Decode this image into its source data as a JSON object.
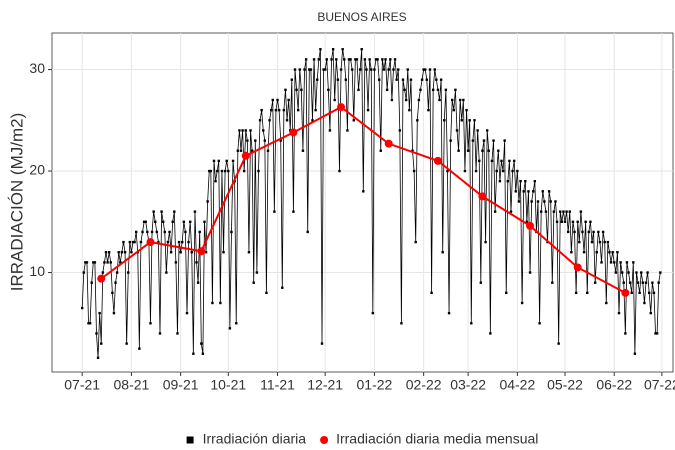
{
  "chart_data": {
    "type": "line",
    "title": "BUENOS AIRES",
    "y_label": "IRRADIACIÓN (MJ/m2)",
    "xlim": [
      -19,
      372
    ],
    "xticks": [
      {
        "value": 0,
        "label": "07-21"
      },
      {
        "value": 31,
        "label": "08-21"
      },
      {
        "value": 62,
        "label": "09-21"
      },
      {
        "value": 92,
        "label": "10-21"
      },
      {
        "value": 123,
        "label": "11-21"
      },
      {
        "value": 153,
        "label": "12-21"
      },
      {
        "value": 184,
        "label": "01-22"
      },
      {
        "value": 215,
        "label": "02-22"
      },
      {
        "value": 243,
        "label": "03-22"
      },
      {
        "value": 274,
        "label": "04-22"
      },
      {
        "value": 304,
        "label": "05-22"
      },
      {
        "value": 335,
        "label": "06-22"
      },
      {
        "value": 365,
        "label": "07-22"
      }
    ],
    "ylim": [
      0.2,
      33.6
    ],
    "yticks": [
      10,
      20,
      30
    ],
    "grid": true,
    "legend": "bottom",
    "series": [
      {
        "name": "Irradiación diaria",
        "color": "#000000",
        "marker": "square",
        "x": [
          0,
          1,
          2,
          3,
          4,
          5,
          6,
          7,
          8,
          9,
          10,
          11,
          12,
          13,
          14,
          15,
          16,
          17,
          18,
          19,
          20,
          21,
          22,
          23,
          24,
          25,
          26,
          27,
          28,
          29,
          30,
          31,
          32,
          33,
          34,
          35,
          36,
          37,
          38,
          39,
          40,
          41,
          42,
          43,
          44,
          45,
          46,
          47,
          48,
          49,
          50,
          51,
          52,
          53,
          54,
          55,
          56,
          57,
          58,
          59,
          60,
          61,
          62,
          63,
          64,
          65,
          66,
          67,
          68,
          69,
          70,
          71,
          72,
          73,
          74,
          75,
          76,
          77,
          78,
          79,
          80,
          81,
          82,
          83,
          84,
          85,
          86,
          87,
          88,
          89,
          90,
          91,
          92,
          93,
          94,
          95,
          96,
          97,
          98,
          99,
          100,
          101,
          102,
          103,
          104,
          105,
          106,
          107,
          108,
          109,
          110,
          111,
          112,
          113,
          114,
          115,
          116,
          117,
          118,
          119,
          120,
          121,
          122,
          123,
          124,
          125,
          126,
          127,
          128,
          129,
          130,
          131,
          132,
          133,
          134,
          135,
          136,
          137,
          138,
          139,
          140,
          141,
          142,
          143,
          144,
          145,
          146,
          147,
          148,
          149,
          150,
          151,
          152,
          153,
          154,
          155,
          156,
          157,
          158,
          159,
          160,
          161,
          162,
          163,
          164,
          165,
          166,
          167,
          168,
          169,
          170,
          171,
          172,
          173,
          174,
          175,
          176,
          177,
          178,
          179,
          180,
          181,
          182,
          183,
          184,
          185,
          186,
          187,
          188,
          189,
          190,
          191,
          192,
          193,
          194,
          195,
          196,
          197,
          198,
          199,
          200,
          201,
          202,
          203,
          204,
          205,
          206,
          207,
          208,
          209,
          210,
          211,
          212,
          213,
          214,
          215,
          216,
          217,
          218,
          219,
          220,
          221,
          222,
          223,
          224,
          225,
          226,
          227,
          228,
          229,
          230,
          231,
          232,
          233,
          234,
          235,
          236,
          237,
          238,
          239,
          240,
          241,
          242,
          243,
          244,
          245,
          246,
          247,
          248,
          249,
          250,
          251,
          252,
          253,
          254,
          255,
          256,
          257,
          258,
          259,
          260,
          261,
          262,
          263,
          264,
          265,
          266,
          267,
          268,
          269,
          270,
          271,
          272,
          273,
          274,
          275,
          276,
          277,
          278,
          279,
          280,
          281,
          282,
          283,
          284,
          285,
          286,
          287,
          288,
          289,
          290,
          291,
          292,
          293,
          294,
          295,
          296,
          297,
          298,
          299,
          300,
          301,
          302,
          303,
          304,
          305,
          306,
          307,
          308,
          309,
          310,
          311,
          312,
          313,
          314,
          315,
          316,
          317,
          318,
          319,
          320,
          321,
          322,
          323,
          324,
          325,
          326,
          327,
          328,
          329,
          330,
          331,
          332,
          333,
          334,
          335,
          336,
          337,
          338,
          339,
          340,
          341,
          342,
          343,
          344,
          345,
          346,
          347,
          348,
          349,
          350,
          351,
          352,
          353,
          354,
          355,
          356,
          357,
          358,
          359,
          360,
          361,
          362,
          363,
          364
        ],
        "values": [
          6.5,
          10,
          11,
          11,
          5,
          5,
          9,
          11,
          11,
          4,
          1.6,
          6,
          3,
          10,
          11,
          12,
          11,
          12,
          11,
          8,
          6,
          9,
          10,
          12,
          11,
          12,
          13,
          12,
          3,
          10,
          13,
          12,
          13,
          13,
          14,
          12,
          2.5,
          13,
          14,
          15,
          15,
          14,
          13,
          5,
          14,
          16,
          15,
          14,
          13,
          4,
          16,
          15,
          14,
          10,
          13,
          14,
          12,
          15,
          16,
          11,
          4,
          13,
          12,
          13,
          15,
          14,
          6,
          13,
          15,
          12,
          2,
          16,
          11,
          9,
          14,
          3,
          2,
          15,
          12,
          17,
          20,
          20,
          7,
          21,
          19,
          20,
          21,
          7,
          20,
          12,
          20,
          21,
          20,
          4.5,
          14,
          21,
          19,
          5,
          22,
          24,
          22,
          24,
          20,
          24,
          23,
          12,
          24,
          22,
          9,
          23,
          10,
          20,
          25,
          26,
          24,
          23,
          8,
          22,
          25,
          26,
          27,
          16,
          26,
          27,
          26,
          23,
          8.5,
          26,
          28,
          25,
          27,
          24,
          29,
          16,
          30,
          28,
          26,
          30,
          28,
          22,
          30,
          31,
          14,
          30,
          30,
          25,
          31,
          26,
          29,
          31,
          32,
          3,
          30,
          30,
          31,
          28,
          24,
          31,
          32,
          27,
          31,
          29,
          20,
          30,
          32,
          31,
          29,
          24,
          31,
          31,
          30,
          25,
          31,
          31,
          28,
          30,
          32,
          18,
          31,
          30,
          26,
          31,
          30,
          6,
          30,
          31,
          31,
          29,
          22,
          31,
          30,
          31,
          28,
          30,
          31,
          27,
          30,
          31,
          29,
          30,
          24,
          5,
          29,
          28,
          27,
          30,
          26,
          29,
          22,
          20,
          13,
          25,
          27,
          28,
          29,
          30,
          30,
          29,
          26,
          30,
          8,
          28,
          30,
          29,
          28,
          27,
          29,
          12,
          25,
          28,
          20,
          6,
          23,
          27,
          26,
          28,
          24,
          22,
          27,
          25,
          27,
          20,
          26,
          22,
          25,
          5,
          23,
          25,
          20,
          24,
          21,
          9,
          22,
          23,
          13,
          24,
          22,
          4,
          21,
          23,
          16,
          20,
          22,
          19,
          21,
          20,
          23,
          8,
          19,
          21,
          16,
          20,
          21,
          18,
          20,
          17,
          19,
          7,
          18,
          19,
          15,
          18,
          10,
          17,
          18,
          19,
          14,
          17,
          5,
          16,
          18,
          17,
          16,
          13,
          18,
          17,
          9,
          16,
          17,
          15,
          3,
          16,
          15,
          16,
          15,
          16,
          14,
          16,
          12,
          15,
          14,
          8,
          15,
          13,
          16,
          14,
          12,
          15,
          8,
          14,
          15,
          13,
          14,
          9,
          12,
          14,
          13,
          11,
          14,
          13,
          7,
          13,
          12,
          11,
          12,
          11,
          10,
          12,
          6,
          11,
          10,
          9,
          4,
          11,
          10,
          9,
          8,
          11,
          2,
          10,
          9,
          8,
          10,
          9,
          7,
          9,
          10,
          8,
          6,
          9,
          8,
          4,
          4,
          9,
          10
        ]
      },
      {
        "name": "Irradiación diaria media mensual",
        "color": "#ff0000",
        "marker": "circle",
        "x": [
          12,
          43,
          75,
          103,
          133,
          163,
          193,
          224,
          252,
          282,
          312,
          342
        ],
        "values": [
          9.4,
          13.0,
          12.1,
          21.5,
          23.8,
          26.3,
          22.7,
          21.0,
          17.5,
          14.6,
          10.5,
          8.0
        ]
      }
    ]
  }
}
